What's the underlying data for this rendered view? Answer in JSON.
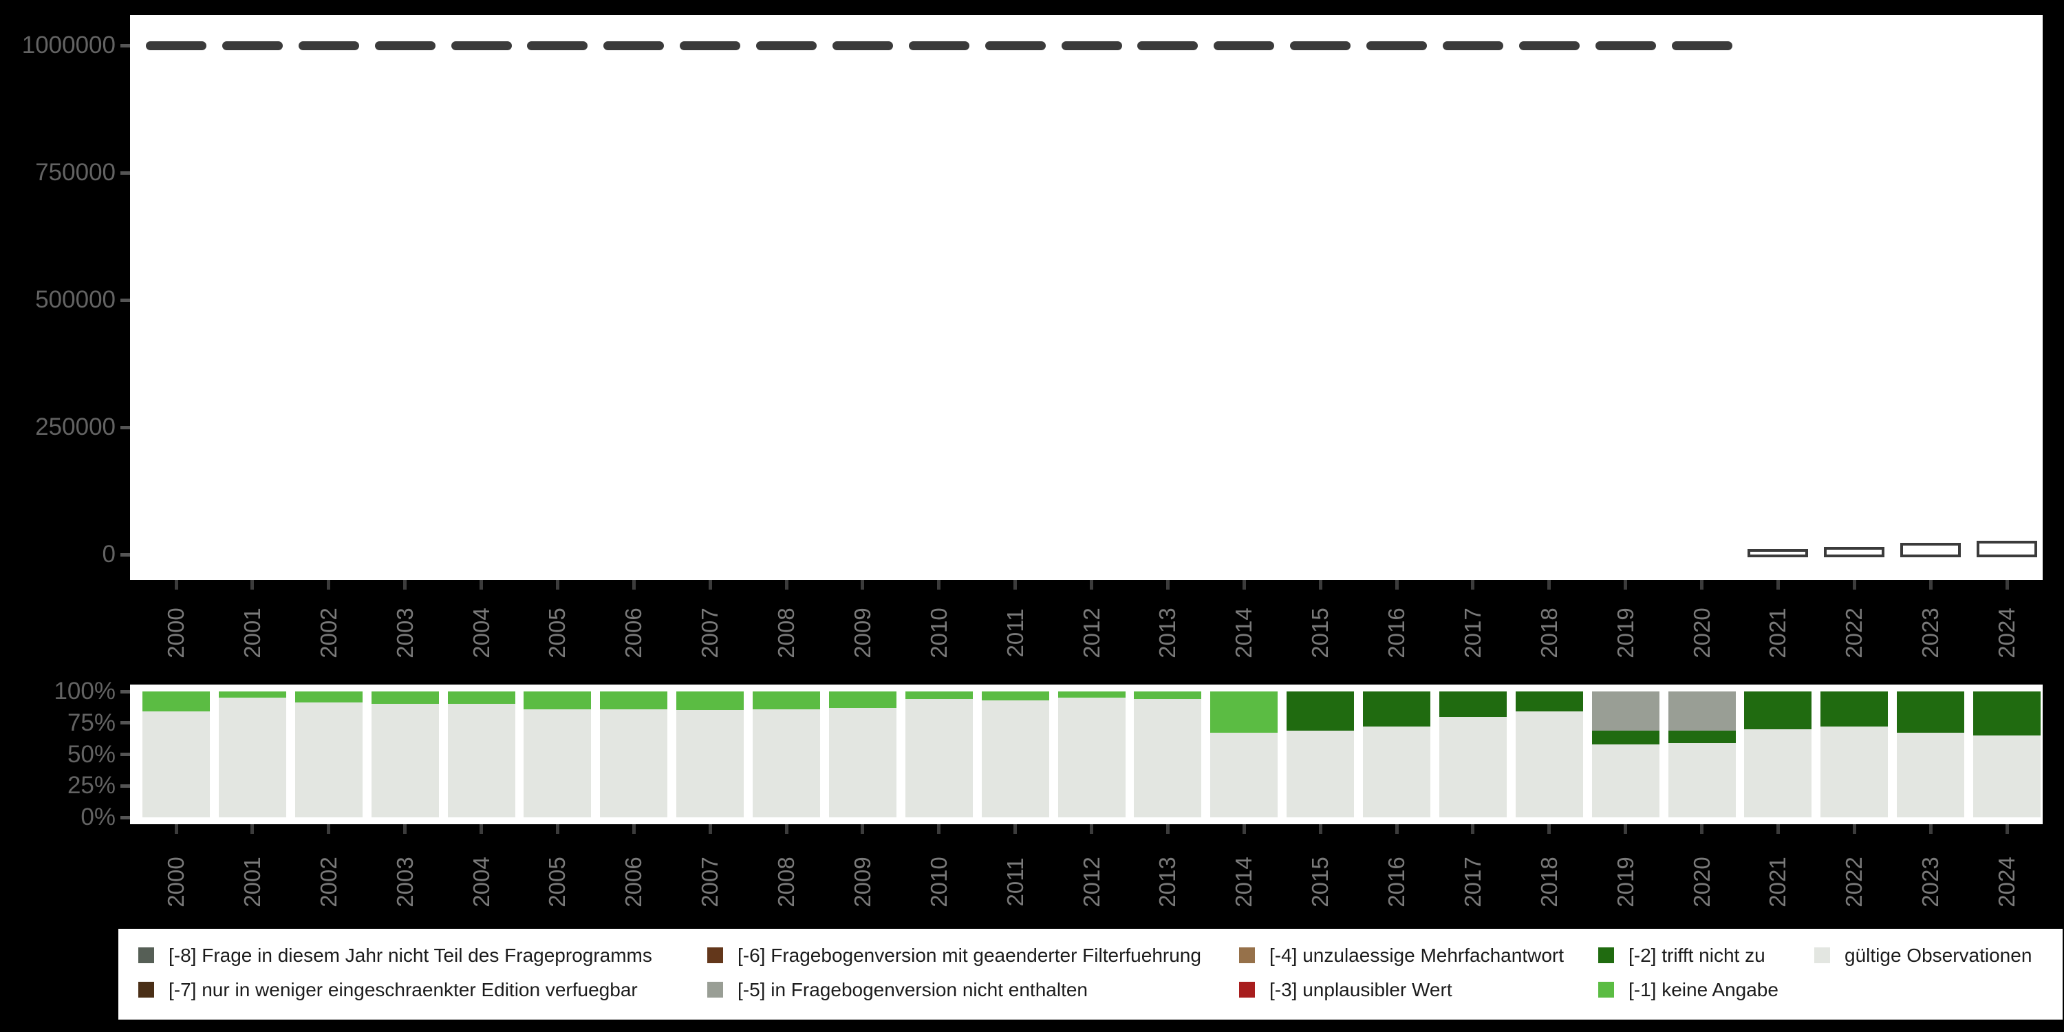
{
  "colors": {
    "background": "#000000",
    "plot_background": "#ffffff",
    "axis_label": "#636363",
    "year_label": "#7a7a7a",
    "bar_outline": "#3b3b3b",
    "legend_background": "#ffffff",
    "legend_text": "#1c1c1c"
  },
  "legend": {
    "items": [
      {
        "code": "-8",
        "label": "[-8] Frage in diesem Jahr nicht Teil des Frageprogramms",
        "color": "#565f56"
      },
      {
        "code": "-7",
        "label": "[-7] nur in weniger eingeschraenkter Edition verfuegbar",
        "color": "#4a2f17"
      },
      {
        "code": "-6",
        "label": "[-6] Fragebogenversion mit geaenderter Filterfuehrung",
        "color": "#63371b"
      },
      {
        "code": "-5",
        "label": "[-5] in Fragebogenversion nicht enthalten",
        "color": "#999e95"
      },
      {
        "code": "-4",
        "label": "[-4] unzulaessige Mehrfachantwort",
        "color": "#96714a"
      },
      {
        "code": "-3",
        "label": "[-3] unplausibler Wert",
        "color": "#a81e1e"
      },
      {
        "code": "-2",
        "label": "[-2] trifft nicht zu",
        "color": "#206b10"
      },
      {
        "code": "-1",
        "label": "[-1] keine Angabe",
        "color": "#5bbc43"
      },
      {
        "code": "valid",
        "label": "gültige Observationen",
        "color": "#e3e6e1"
      }
    ]
  },
  "chart_data": [
    {
      "type": "bar",
      "name": "observation-counts-by-year",
      "title": "",
      "xlabel": "",
      "ylabel": "",
      "grid": false,
      "ylim": [
        0,
        1060000
      ],
      "yticks": [
        {
          "label": "1000000",
          "value": 1000000
        },
        {
          "label": "750000",
          "value": 750000
        },
        {
          "label": "500000",
          "value": 500000
        },
        {
          "label": "250000",
          "value": 250000
        },
        {
          "label": "0",
          "value": 0
        }
      ],
      "categories": [
        "2000",
        "2001",
        "2002",
        "2003",
        "2004",
        "2005",
        "2006",
        "2007",
        "2008",
        "2009",
        "2010",
        "2011",
        "2012",
        "2013",
        "2014",
        "2015",
        "2016",
        "2017",
        "2018",
        "2019",
        "2020",
        "2021",
        "2022",
        "2023",
        "2024"
      ],
      "values": [
        1000000,
        1000000,
        1000000,
        1000000,
        1000000,
        1000000,
        1000000,
        1000000,
        1000000,
        1000000,
        1000000,
        1000000,
        1000000,
        1000000,
        1000000,
        1000000,
        1000000,
        1000000,
        1000000,
        1000000,
        1000000,
        10000,
        13000,
        22000,
        26000
      ],
      "bar_style": "white fill with dark outline"
    },
    {
      "type": "bar",
      "name": "missing-value-shares-by-year",
      "stacked": true,
      "unit": "percent",
      "title": "",
      "xlabel": "",
      "ylabel": "",
      "grid": false,
      "ylim": [
        0,
        100
      ],
      "yticks": [
        {
          "label": "100%",
          "value": 100
        },
        {
          "label": "75%",
          "value": 75
        },
        {
          "label": "50%",
          "value": 50
        },
        {
          "label": "25%",
          "value": 25
        },
        {
          "label": "0%",
          "value": 0
        }
      ],
      "categories": [
        "2000",
        "2001",
        "2002",
        "2003",
        "2004",
        "2005",
        "2006",
        "2007",
        "2008",
        "2009",
        "2010",
        "2011",
        "2012",
        "2013",
        "2014",
        "2015",
        "2016",
        "2017",
        "2018",
        "2019",
        "2020",
        "2021",
        "2022",
        "2023",
        "2024"
      ],
      "stack_order": "bottom_to_top",
      "series": [
        {
          "name": "gültige Observationen",
          "color": "#e3e6e1",
          "values": [
            84,
            95,
            91,
            90,
            90,
            86,
            86,
            85,
            86,
            87,
            94,
            93,
            95,
            94,
            67,
            69,
            72,
            80,
            84,
            58,
            59,
            70,
            72,
            67,
            65
          ]
        },
        {
          "name": "[-1] keine Angabe",
          "color": "#5bbc43",
          "values": [
            16,
            5,
            9,
            10,
            10,
            14,
            14,
            15,
            14,
            13,
            6,
            7,
            5,
            6,
            33,
            0,
            0,
            0,
            0,
            0,
            0,
            0,
            0,
            0,
            0
          ]
        },
        {
          "name": "[-2] trifft nicht zu",
          "color": "#206b10",
          "values": [
            0,
            0,
            0,
            0,
            0,
            0,
            0,
            0,
            0,
            0,
            0,
            0,
            0,
            0,
            0,
            31,
            28,
            20,
            16,
            11,
            10,
            30,
            28,
            33,
            35
          ]
        },
        {
          "name": "[-3] unplausibler Wert",
          "color": "#a81e1e",
          "values": [
            0,
            0,
            0,
            0,
            0,
            0,
            0,
            0,
            0,
            0,
            0,
            0,
            0,
            0,
            0,
            0,
            0,
            0,
            0,
            0,
            0,
            0,
            0,
            0,
            0
          ]
        },
        {
          "name": "[-4] unzulaessige Mehrfachantwort",
          "color": "#96714a",
          "values": [
            0,
            0,
            0,
            0,
            0,
            0,
            0,
            0,
            0,
            0,
            0,
            0,
            0,
            0,
            0,
            0,
            0,
            0,
            0,
            0,
            0,
            0,
            0,
            0,
            0
          ]
        },
        {
          "name": "[-5] in Fragebogenversion nicht enthalten",
          "color": "#999e95",
          "values": [
            0,
            0,
            0,
            0,
            0,
            0,
            0,
            0,
            0,
            0,
            0,
            0,
            0,
            0,
            0,
            0,
            0,
            0,
            0,
            31,
            31,
            0,
            0,
            0,
            0
          ]
        },
        {
          "name": "[-6] Fragebogenversion mit geaenderter Filterfuehrung",
          "color": "#63371b",
          "values": [
            0,
            0,
            0,
            0,
            0,
            0,
            0,
            0,
            0,
            0,
            0,
            0,
            0,
            0,
            0,
            0,
            0,
            0,
            0,
            0,
            0,
            0,
            0,
            0,
            0
          ]
        },
        {
          "name": "[-7] nur in weniger eingeschraenkter Edition verfuegbar",
          "color": "#4a2f17",
          "values": [
            0,
            0,
            0,
            0,
            0,
            0,
            0,
            0,
            0,
            0,
            0,
            0,
            0,
            0,
            0,
            0,
            0,
            0,
            0,
            0,
            0,
            0,
            0,
            0,
            0
          ]
        },
        {
          "name": "[-8] Frage in diesem Jahr nicht Teil des Frageprogramms",
          "color": "#565f56",
          "values": [
            0,
            0,
            0,
            0,
            0,
            0,
            0,
            0,
            0,
            0,
            0,
            0,
            0,
            0,
            0,
            0,
            0,
            0,
            0,
            0,
            0,
            0,
            0,
            0,
            0
          ]
        }
      ]
    }
  ]
}
